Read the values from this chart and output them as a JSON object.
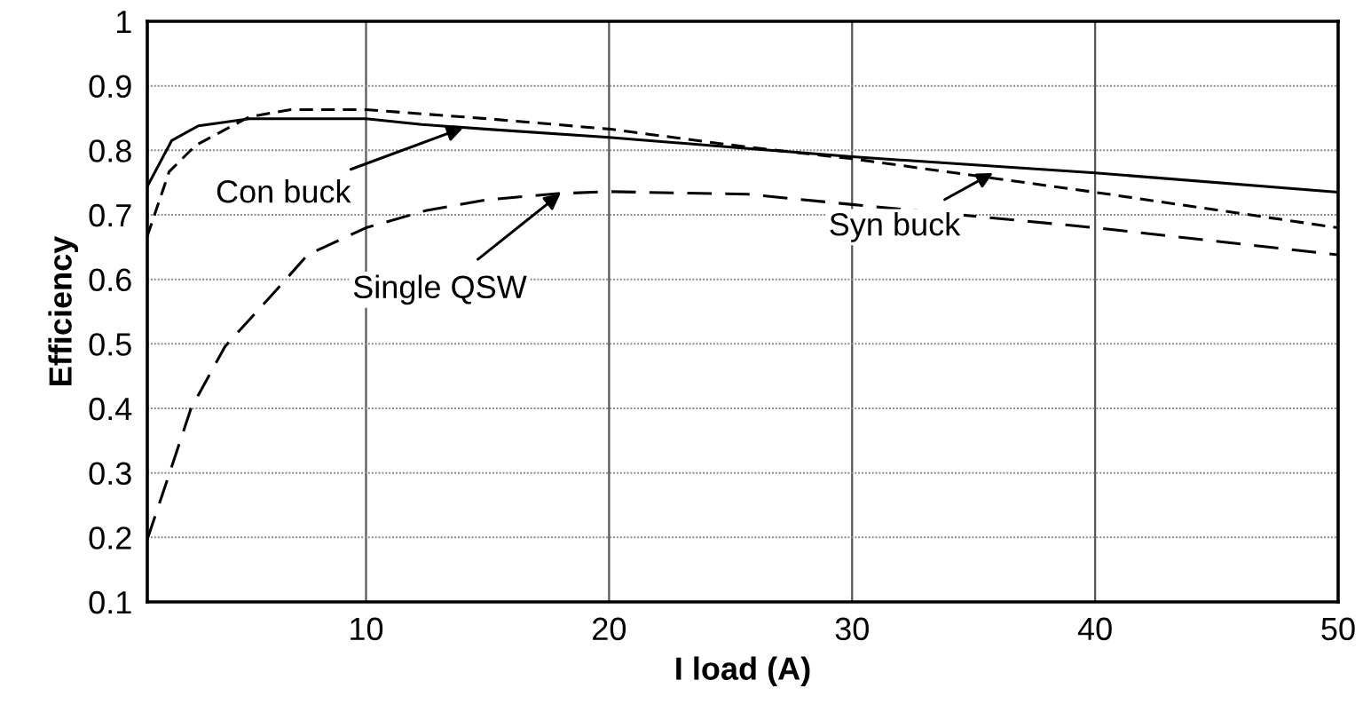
{
  "chart_data": {
    "type": "line",
    "xlabel": "I load (A)",
    "ylabel": "Efficiency",
    "xlim": [
      1,
      50
    ],
    "xticks": [
      10,
      20,
      30,
      40,
      50
    ],
    "ylim": [
      0.1,
      1
    ],
    "yticks": [
      0.1,
      0.2,
      0.3,
      0.4,
      0.5,
      0.6,
      0.7,
      0.8,
      0.9,
      1
    ],
    "grid": true,
    "series": [
      {
        "color": "#000000",
        "line_style": "solid",
        "x": [
          1,
          2,
          3.1,
          5.2,
          10,
          12.3,
          14.9,
          20,
          25.7,
          30,
          40,
          50
        ],
        "values": [
          0.744,
          0.815,
          0.838,
          0.849,
          0.849,
          0.84,
          0.833,
          0.82,
          0.803,
          0.79,
          0.765,
          0.735
        ]
      },
      {
        "color": "#000000",
        "line_style": "dashed",
        "x": [
          1,
          1.9,
          3,
          5.2,
          6.9,
          10,
          15,
          20,
          25.7,
          30,
          40,
          50
        ],
        "values": [
          0.667,
          0.767,
          0.808,
          0.852,
          0.863,
          0.863,
          0.849,
          0.833,
          0.805,
          0.787,
          0.735,
          0.68
        ]
      },
      {
        "color": "#000000",
        "line_style": "long dashed",
        "x": [
          1,
          1.9,
          2.8,
          4.2,
          6.3,
          7.6,
          10,
          12.5,
          14.9,
          17.9,
          20,
          25.7,
          30,
          40,
          50
        ],
        "values": [
          0.197,
          0.298,
          0.4,
          0.496,
          0.583,
          0.638,
          0.68,
          0.707,
          0.723,
          0.733,
          0.736,
          0.732,
          0.716,
          0.68,
          0.638
        ]
      }
    ],
    "annotations": [
      {
        "text": "Con buck",
        "x": 14.0,
        "y": 0.835
      },
      {
        "text": "Single QSW",
        "x": 18.0,
        "y": 0.733
      },
      {
        "text": "Syn buck",
        "x": 35.8,
        "y": 0.765
      }
    ]
  }
}
